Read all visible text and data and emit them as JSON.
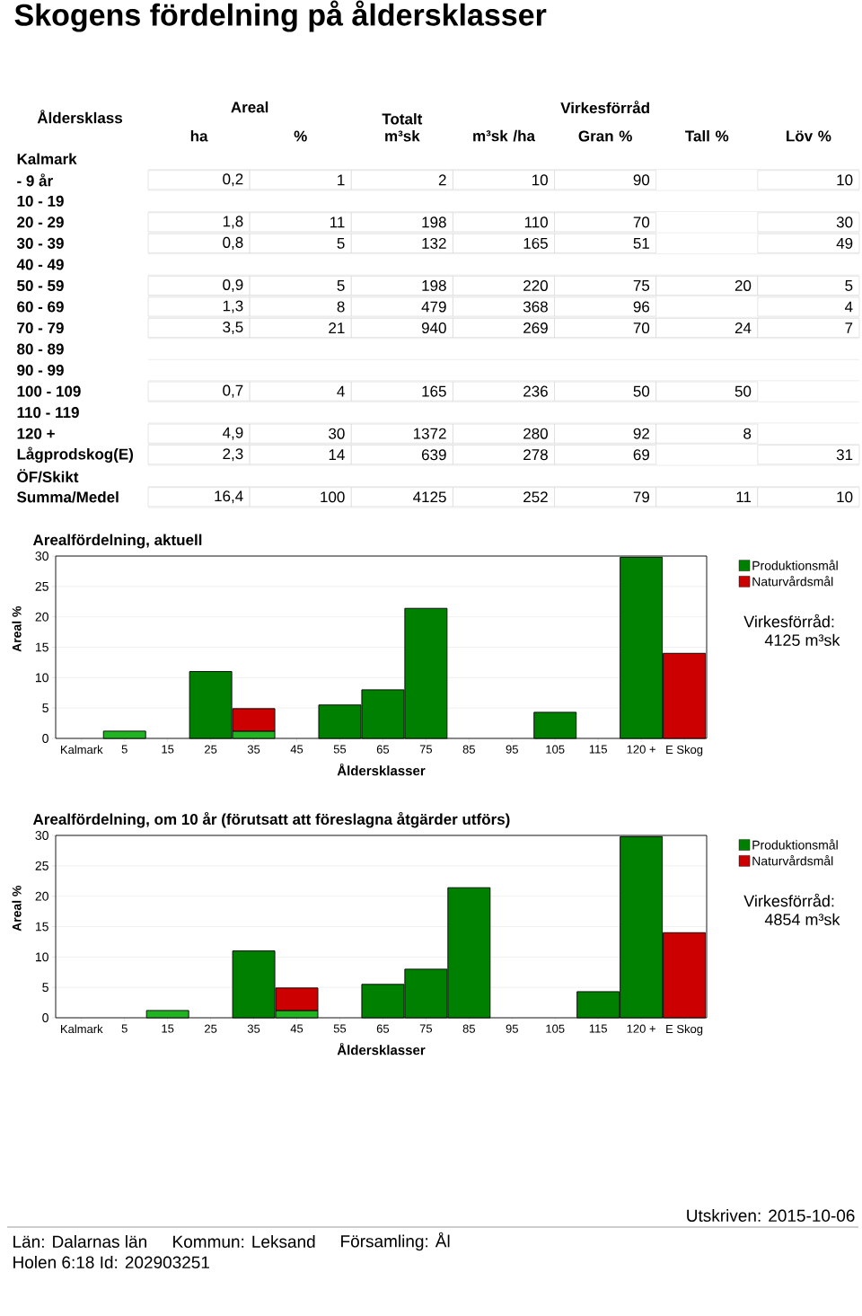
{
  "chart_data": [
    {
      "type": "other",
      "title": "Skogens fördelning på åldersklasser",
      "ylabel": "Åldersklass",
      "categories": [
        "ha",
        "%",
        "Totalt m³sk",
        "m³sk /ha",
        "Gran %",
        "Tall %",
        "Löv %"
      ],
      "y_categories": [
        "Kalmark",
        "- 9 år",
        "10 - 19",
        "20 - 29",
        "30 - 39",
        "40 - 49",
        "50 - 59",
        "60 - 69",
        "70 - 79",
        "80 - 89",
        "90 - 99",
        "100 - 109",
        "110 - 119",
        "120 +",
        "Lågprodskog(E)",
        "ÖF/Skikt",
        "Summa/Medel"
      ],
      "cell_labels": [
        [
          null,
          null,
          null,
          null,
          null,
          null,
          null
        ],
        [
          "0,2",
          "1",
          "2",
          "10",
          "90",
          null,
          "10"
        ],
        [
          null,
          null,
          null,
          null,
          null,
          null,
          null
        ],
        [
          "1,8",
          "11",
          "198",
          "110",
          "70",
          null,
          "30"
        ],
        [
          "0,8",
          "5",
          "132",
          "165",
          "51",
          null,
          "49"
        ],
        [
          null,
          null,
          null,
          null,
          null,
          null,
          null
        ],
        [
          "0,9",
          "5",
          "198",
          "220",
          "75",
          "20",
          "5"
        ],
        [
          "1,3",
          "8",
          "479",
          "368",
          "96",
          null,
          "4"
        ],
        [
          "3,5",
          "21",
          "940",
          "269",
          "70",
          "24",
          "7"
        ],
        [
          null,
          null,
          null,
          null,
          null,
          null,
          null
        ],
        [
          null,
          null,
          null,
          null,
          null,
          null,
          null
        ],
        [
          "0,7",
          "4",
          "165",
          "236",
          "50",
          "50",
          null
        ],
        [
          null,
          null,
          null,
          null,
          null,
          null,
          null
        ],
        [
          "4,9",
          "30",
          "1372",
          "280",
          "92",
          "8",
          null
        ],
        [
          "2,3",
          "14",
          "639",
          "278",
          "69",
          null,
          "31"
        ],
        [
          null,
          null,
          null,
          null,
          null,
          null,
          null
        ],
        [
          "16,4",
          "100",
          "4125",
          "252",
          "79",
          "11",
          "10"
        ]
      ],
      "annotations": [
        "Areal",
        "Virkesförråd"
      ]
    },
    {
      "type": "bar",
      "title": "Arealfördelning, aktuell",
      "xlabel": "Åldersklasser",
      "ylabel": "Areal %",
      "stacked": true,
      "categories": [
        "Kalmark",
        "5",
        "15",
        "25",
        "35",
        "45",
        "55",
        "65",
        "75",
        "85",
        "95",
        "105",
        "115",
        "120 +",
        "E Skog"
      ],
      "series": [
        {
          "name": "Produktionsmål",
          "color": "#008000",
          "colors": [
            "#008000",
            "#22b322",
            "#008000",
            "#008000",
            "#22b322",
            "#008000",
            "#008000",
            "#008000",
            "#008000",
            "#008000",
            "#008000",
            "#008000",
            "#008000",
            "#008000",
            "#008000"
          ],
          "values": [
            null,
            1.2,
            null,
            11,
            1.2,
            null,
            5.5,
            8,
            21.4,
            null,
            null,
            4.3,
            null,
            29.8,
            null
          ]
        },
        {
          "name": "Naturvårdsmål",
          "color": "#cc0000",
          "values": [
            null,
            null,
            null,
            null,
            3.7,
            null,
            null,
            null,
            null,
            null,
            null,
            null,
            null,
            null,
            14
          ]
        }
      ],
      "ylim": [
        0,
        30
      ],
      "yticks": [
        0,
        5,
        10,
        15,
        20,
        25,
        30
      ],
      "grid": "y",
      "legend": "top right",
      "annotations": [
        "Virkesförråd:",
        "4125 m³sk"
      ]
    },
    {
      "type": "bar",
      "title": "Arealfördelning, om 10 år (förutsatt att föreslagna åtgärder utförs)",
      "xlabel": "Åldersklasser",
      "ylabel": "Areal %",
      "stacked": true,
      "categories": [
        "Kalmark",
        "5",
        "15",
        "25",
        "35",
        "45",
        "55",
        "65",
        "75",
        "85",
        "95",
        "105",
        "115",
        "120 +",
        "E Skog"
      ],
      "series": [
        {
          "name": "Produktionsmål",
          "color": "#008000",
          "colors": [
            "#008000",
            "#008000",
            "#22b322",
            "#008000",
            "#008000",
            "#22b322",
            "#008000",
            "#008000",
            "#008000",
            "#008000",
            "#008000",
            "#008000",
            "#008000",
            "#008000",
            "#008000"
          ],
          "values": [
            null,
            null,
            1.2,
            null,
            11,
            1.2,
            null,
            5.5,
            8,
            21.4,
            null,
            null,
            4.3,
            29.8,
            null
          ]
        },
        {
          "name": "Naturvårdsmål",
          "color": "#cc0000",
          "values": [
            null,
            null,
            null,
            null,
            null,
            3.7,
            null,
            null,
            null,
            null,
            null,
            null,
            null,
            null,
            14
          ]
        }
      ],
      "ylim": [
        0,
        30
      ],
      "yticks": [
        0,
        5,
        10,
        15,
        20,
        25,
        30
      ],
      "grid": "y",
      "legend": "top right",
      "annotations": [
        "Virkesförråd:",
        "4854 m³sk",
        "Utskriven: 2015-10-06",
        "Län: Dalarnas län",
        "Kommun: Leksand",
        "Församling: Ål",
        "Holen 6:18 Id: 202903251"
      ]
    }
  ]
}
